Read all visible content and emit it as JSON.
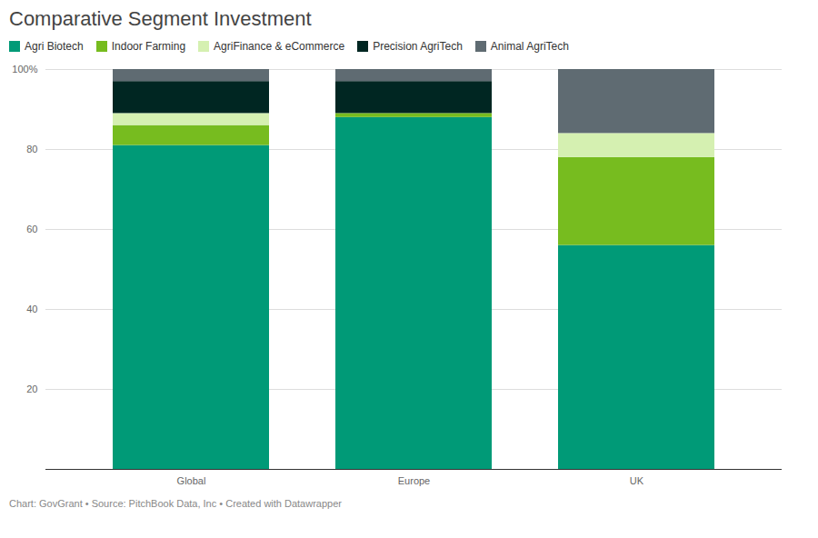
{
  "chart_data": {
    "type": "bar",
    "stacked": true,
    "title": "Comparative Segment Investment",
    "caption": "Chart: GovGrant • Source: PitchBook Data, Inc • Created with Datawrapper",
    "categories": [
      "Global",
      "Europe",
      "UK"
    ],
    "series": [
      {
        "name": "Agri Biotech",
        "color": "#009a77",
        "values": [
          81,
          88,
          56
        ]
      },
      {
        "name": "Indoor Farming",
        "color": "#77bc1f",
        "values": [
          5,
          1,
          22
        ]
      },
      {
        "name": "AgriFinance & eCommerce",
        "color": "#d5f0b1",
        "values": [
          3,
          0,
          6
        ]
      },
      {
        "name": "Precision AgriTech",
        "color": "#002622",
        "values": [
          8,
          8,
          0
        ]
      },
      {
        "name": "Animal AgriTech",
        "color": "#5f6b72",
        "values": [
          3,
          3,
          16
        ]
      }
    ],
    "ylim": [
      0,
      100
    ],
    "yticks": [
      20,
      40,
      60,
      80,
      {
        "value": 100,
        "label": "100%"
      }
    ],
    "grid": true,
    "legend": "top"
  }
}
